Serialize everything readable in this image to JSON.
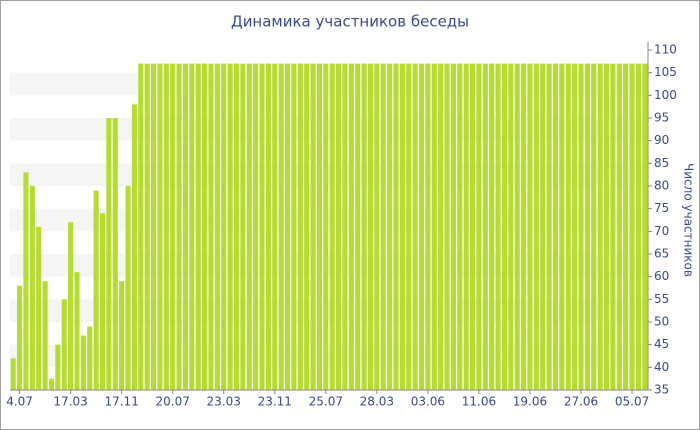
{
  "chart_data": {
    "type": "bar",
    "title": "Динамика участников беседы",
    "y_axis_label": "Число участников",
    "color": "#b5dc2f",
    "grid": true,
    "ylim": [
      35,
      110
    ],
    "yticks": [
      35,
      40,
      45,
      50,
      55,
      60,
      65,
      70,
      75,
      80,
      85,
      90,
      95,
      100,
      105,
      110
    ],
    "categories": [
      null,
      "4.07",
      null,
      null,
      null,
      null,
      null,
      null,
      null,
      "17.03",
      null,
      null,
      null,
      null,
      null,
      null,
      null,
      "17.11",
      null,
      null,
      null,
      null,
      null,
      null,
      null,
      "20.07",
      null,
      null,
      null,
      null,
      null,
      null,
      null,
      "23.03",
      null,
      null,
      null,
      null,
      null,
      null,
      null,
      "23.11",
      null,
      null,
      null,
      null,
      null,
      null,
      null,
      "25.07",
      null,
      null,
      null,
      null,
      null,
      null,
      null,
      "28.03",
      null,
      null,
      null,
      null,
      null,
      null,
      null,
      "03.06",
      null,
      null,
      null,
      null,
      null,
      null,
      null,
      "11.06",
      null,
      null,
      null,
      null,
      null,
      null,
      null,
      "19.06",
      null,
      null,
      null,
      null,
      null,
      null,
      null,
      "27.06",
      null,
      null,
      null,
      null,
      null,
      null,
      null,
      "05.07",
      null,
      null
    ],
    "values": [
      42,
      58,
      83,
      80,
      71,
      59,
      37.5,
      45,
      55,
      72,
      61,
      47,
      49,
      79,
      74,
      95,
      95,
      59,
      80,
      98,
      107,
      107,
      107,
      107,
      107,
      107,
      107,
      107,
      107,
      107,
      107,
      107,
      107,
      107,
      107,
      107,
      107,
      107,
      107,
      107,
      107,
      107,
      107,
      107,
      107,
      107,
      107,
      107,
      107,
      107,
      107,
      107,
      107,
      107,
      107,
      107,
      107,
      107,
      107,
      107,
      107,
      107,
      107,
      107,
      107,
      107,
      107,
      107,
      107,
      107,
      107,
      107,
      107,
      107,
      107,
      107,
      107,
      107,
      107,
      107,
      107,
      107,
      107,
      107,
      107,
      107,
      107,
      107,
      107,
      107,
      107,
      107,
      107,
      107,
      107,
      107,
      107,
      107,
      107,
      107
    ]
  }
}
